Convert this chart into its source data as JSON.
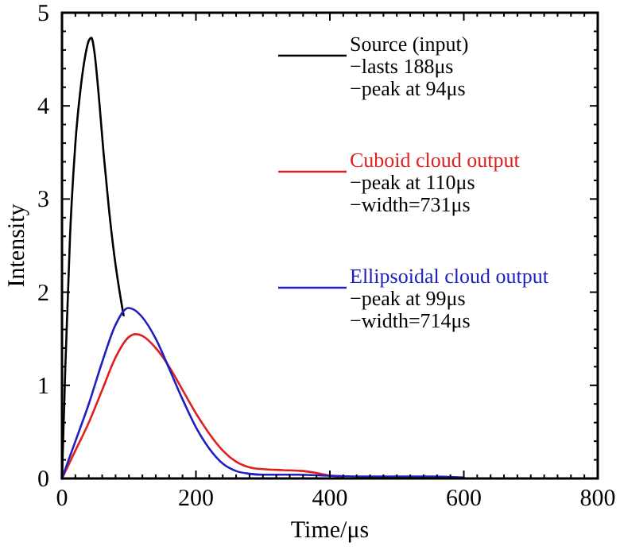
{
  "chart_data": {
    "type": "line",
    "xlabel": "Time/μs",
    "ylabel": "Intensity",
    "xlim": [
      0,
      800
    ],
    "ylim": [
      0,
      5
    ],
    "xticks": [
      0,
      200,
      400,
      600,
      800
    ],
    "yticks": [
      0,
      1,
      2,
      3,
      4,
      5
    ],
    "legend": "top right",
    "grid": false,
    "line_style": "solid",
    "marker": "none",
    "series": [
      {
        "name": "Source (input)",
        "color": "#000000",
        "x": [
          0,
          5,
          12,
          20,
          28,
          35,
          40,
          44,
          48,
          55,
          62,
          70,
          78,
          85,
          92
        ],
        "values": [
          0,
          1.2,
          2.6,
          3.6,
          4.2,
          4.55,
          4.7,
          4.73,
          4.6,
          4.1,
          3.5,
          2.9,
          2.4,
          2.05,
          1.75
        ]
      },
      {
        "name": "Cuboid cloud output",
        "color": "#e02020",
        "x": [
          0,
          20,
          40,
          60,
          80,
          100,
          110,
          120,
          140,
          160,
          180,
          200,
          220,
          240,
          260,
          280,
          300,
          330,
          360,
          380,
          400,
          420
        ],
        "values": [
          0,
          0.3,
          0.6,
          0.95,
          1.3,
          1.52,
          1.55,
          1.53,
          1.4,
          1.2,
          0.95,
          0.7,
          0.48,
          0.3,
          0.18,
          0.12,
          0.1,
          0.09,
          0.08,
          0.06,
          0.03,
          0.01
        ]
      },
      {
        "name": "Ellipsoidal cloud output",
        "color": "#2020c0",
        "x": [
          0,
          20,
          40,
          60,
          80,
          99,
          110,
          120,
          140,
          160,
          180,
          200,
          220,
          240,
          260,
          280,
          300,
          350,
          400,
          450,
          500,
          550,
          600
        ],
        "values": [
          0,
          0.4,
          0.8,
          1.25,
          1.65,
          1.83,
          1.8,
          1.73,
          1.5,
          1.18,
          0.85,
          0.55,
          0.32,
          0.16,
          0.08,
          0.05,
          0.04,
          0.04,
          0.03,
          0.02,
          0.02,
          0.02,
          0.01
        ]
      }
    ],
    "annotations": [
      "−lasts 188μs",
      "−peak at 94μs",
      "−peak at 110μs",
      "−width=731μs",
      "−peak at 99μs",
      "−width=714μs"
    ]
  }
}
